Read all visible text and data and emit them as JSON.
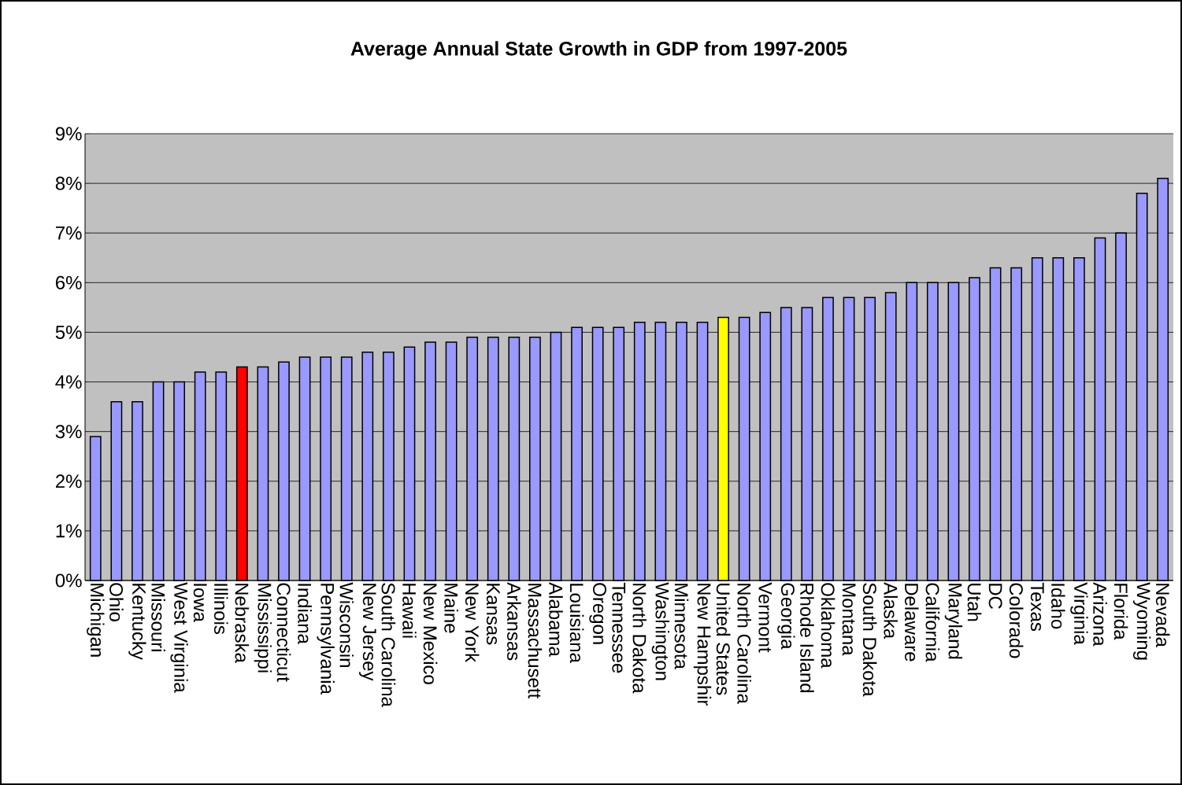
{
  "chart_data": {
    "type": "bar",
    "title": "Average Annual State Growth in GDP from 1997-2005",
    "categories": [
      "Michigan",
      "Ohio",
      "Kentucky",
      "Missouri",
      "West Virginia",
      "Iowa",
      "Illinois",
      "Nebraska",
      "Mississippi",
      "Connecticut",
      "Indiana",
      "Pennsylvania",
      "Wisconsin",
      "New Jersey",
      "South Carolina",
      "Hawaii",
      "New Mexico",
      "Maine",
      "New York",
      "Kansas",
      "Arkansas",
      "Massachusett",
      "Alabama",
      "Louisiana",
      "Oregon",
      "Tennessee",
      "North Dakota",
      "Washington",
      "Minnesota",
      "New Hampshir",
      "United States",
      "North Carolina",
      "Vermont",
      "Georgia",
      "Rhode Island",
      "Oklahoma",
      "Montana",
      "South Dakota",
      "Alaska",
      "Delaware",
      "California",
      "Maryland",
      "Utah",
      "DC",
      "Colorado",
      "Texas",
      "Idaho",
      "Virginia",
      "Arizona",
      "Florida",
      "Wyoming",
      "Nevada"
    ],
    "values": [
      2.9,
      3.6,
      3.6,
      4.0,
      4.0,
      4.2,
      4.2,
      4.3,
      4.3,
      4.4,
      4.5,
      4.5,
      4.5,
      4.6,
      4.6,
      4.7,
      4.8,
      4.8,
      4.9,
      4.9,
      4.9,
      4.9,
      5.0,
      5.1,
      5.1,
      5.1,
      5.2,
      5.2,
      5.2,
      5.2,
      5.3,
      5.3,
      5.4,
      5.5,
      5.5,
      5.7,
      5.7,
      5.7,
      5.8,
      6.0,
      6.0,
      6.0,
      6.1,
      6.3,
      6.3,
      6.5,
      6.5,
      6.5,
      6.9,
      7.0,
      7.8,
      8.1
    ],
    "colors": [
      "#9999ff",
      "#9999ff",
      "#9999ff",
      "#9999ff",
      "#9999ff",
      "#9999ff",
      "#9999ff",
      "#ff0000",
      "#9999ff",
      "#9999ff",
      "#9999ff",
      "#9999ff",
      "#9999ff",
      "#9999ff",
      "#9999ff",
      "#9999ff",
      "#9999ff",
      "#9999ff",
      "#9999ff",
      "#9999ff",
      "#9999ff",
      "#9999ff",
      "#9999ff",
      "#9999ff",
      "#9999ff",
      "#9999ff",
      "#9999ff",
      "#9999ff",
      "#9999ff",
      "#9999ff",
      "#ffff00",
      "#9999ff",
      "#9999ff",
      "#9999ff",
      "#9999ff",
      "#9999ff",
      "#9999ff",
      "#9999ff",
      "#9999ff",
      "#9999ff",
      "#9999ff",
      "#9999ff",
      "#9999ff",
      "#9999ff",
      "#9999ff",
      "#9999ff",
      "#9999ff",
      "#9999ff",
      "#9999ff",
      "#9999ff",
      "#9999ff",
      "#9999ff"
    ],
    "ylim": [
      0,
      9
    ],
    "yticks": [
      {
        "value": 0,
        "label": "0%"
      },
      {
        "value": 1,
        "label": "1%"
      },
      {
        "value": 2,
        "label": "2%"
      },
      {
        "value": 3,
        "label": "3%"
      },
      {
        "value": 4,
        "label": "4%"
      },
      {
        "value": 5,
        "label": "5%"
      },
      {
        "value": 6,
        "label": "6%"
      },
      {
        "value": 7,
        "label": "7%"
      },
      {
        "value": 8,
        "label": "8%"
      },
      {
        "value": 9,
        "label": "9%"
      }
    ],
    "grid": "y"
  }
}
